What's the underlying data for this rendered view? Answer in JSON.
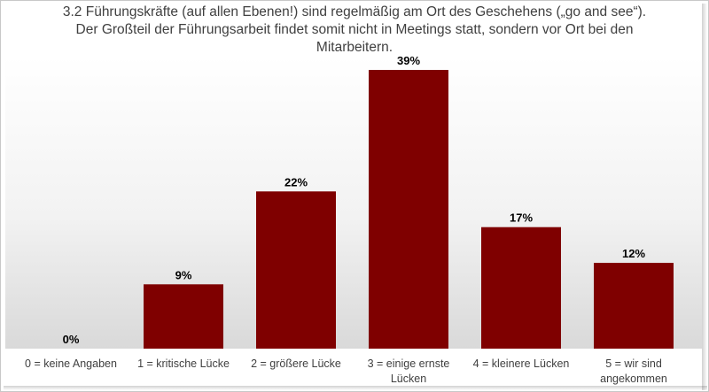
{
  "chart_data": {
    "type": "bar",
    "title": "3.2 Führungskräfte (auf allen Ebenen!) sind regelmäßig am Ort des Geschehens („go and see“). Der Großteil der Führungsarbeit findet somit nicht in Meetings statt, sondern vor Ort bei den Mitarbeitern.",
    "categories": [
      "0 = keine Angaben",
      "1 = kritische Lücke",
      "2 = größere Lücke",
      "3 = einige ernste Lücken",
      "4 = kleinere Lücken",
      "5 = wir sind angekommen"
    ],
    "category_lines": [
      [
        "0 = keine Angaben"
      ],
      [
        "1 = kritische Lücke"
      ],
      [
        "2 = größere Lücke"
      ],
      [
        "3 = einige ernste",
        "Lücken"
      ],
      [
        "4 = kleinere Lücken"
      ],
      [
        "5 = wir sind",
        "angekommen"
      ]
    ],
    "values": [
      0,
      9,
      22,
      39,
      17,
      12
    ],
    "value_labels": [
      "0%",
      "9%",
      "22%",
      "39%",
      "17%",
      "12%"
    ],
    "unit": "%",
    "ylim": [
      0,
      40
    ],
    "grid": false,
    "legend": "none",
    "bar_color": "#7f0000"
  }
}
